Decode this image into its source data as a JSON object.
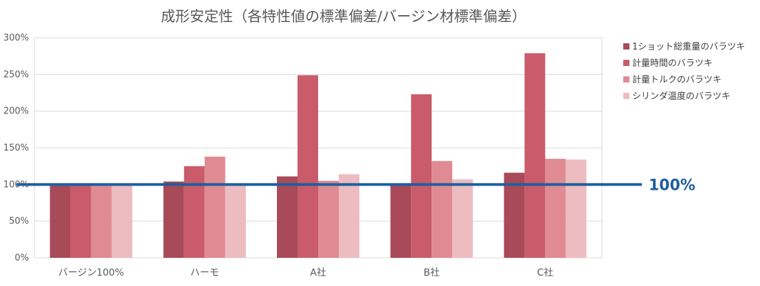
{
  "chart_data": {
    "type": "bar",
    "title": "成形安定性（各特性値の標準偏差/バージン材標準偏差）",
    "categories": [
      "バージン100%",
      "ハーモ",
      "A社",
      "B社",
      "C社"
    ],
    "y_ticks": [
      "0%",
      "50%",
      "100%",
      "150%",
      "200%",
      "250%",
      "300%"
    ],
    "ylim": [
      0,
      300
    ],
    "series": [
      {
        "name": "1ショット総重量のバラツキ",
        "color": "#a94a58",
        "values": [
          100,
          104,
          111,
          100,
          116
        ]
      },
      {
        "name": "計量時間のバラツキ",
        "color": "#c95b6a",
        "values": [
          100,
          125,
          249,
          223,
          279
        ]
      },
      {
        "name": "計量トルクのバラツキ",
        "color": "#e08b93",
        "values": [
          100,
          138,
          105,
          132,
          135
        ]
      },
      {
        "name": "シリンダ温度のバラツキ",
        "color": "#edbcc1",
        "values": [
          100,
          100,
          114,
          107,
          134
        ]
      }
    ],
    "reference_line": {
      "value": 100,
      "label": "100%",
      "color": "#1f5f9c"
    },
    "legend_position": "right",
    "grid": true
  }
}
